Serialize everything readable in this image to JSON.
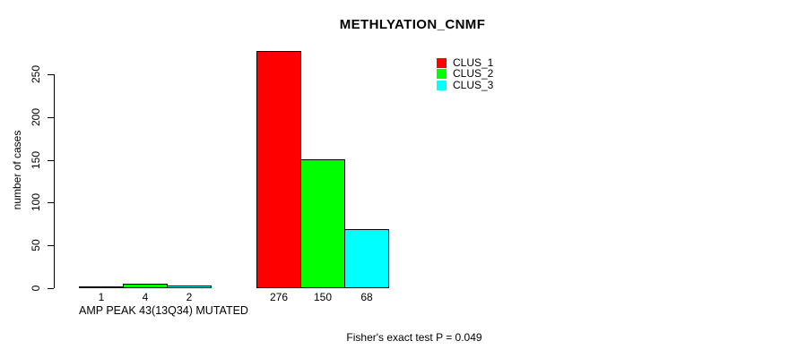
{
  "chart_data": {
    "type": "bar",
    "title": "METHLYATION_CNMF",
    "ylabel": "number of cases",
    "ylim": [
      0,
      250
    ],
    "yticks": [
      0,
      50,
      100,
      150,
      200,
      250
    ],
    "grid": false,
    "legend_position": "top-right",
    "legend": [
      {
        "label": "CLUS_1",
        "color": "#FF0000"
      },
      {
        "label": "CLUS_2",
        "color": "#00FF00"
      },
      {
        "label": "CLUS_3",
        "color": "#00FFFF"
      }
    ],
    "series_colors": [
      "#FF0000",
      "#00FF00",
      "#00FFFF"
    ],
    "groups": [
      {
        "label": "AMP PEAK 43(13Q34) MUTATED",
        "values": [
          1,
          4,
          2
        ]
      },
      {
        "label": "",
        "values": [
          276,
          150,
          68
        ]
      }
    ],
    "bar_value_labels": [
      "1",
      "4",
      "2",
      "276",
      "150",
      "68"
    ],
    "annotation": "Fisher's exact test P = 0.049",
    "axis_color": "#000000",
    "background_color": "#FFFFFF"
  }
}
